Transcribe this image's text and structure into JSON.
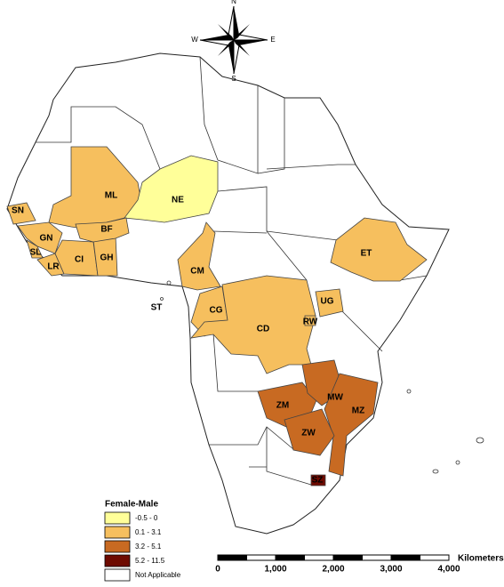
{
  "compass": {
    "north": "N",
    "south": "S",
    "east": "E",
    "west": "W"
  },
  "regions": [
    {
      "code": "ML",
      "range": "0.1 - 3.1"
    },
    {
      "code": "NE",
      "range": "-0.5 - 0"
    },
    {
      "code": "SN",
      "range": "0.1 - 3.1"
    },
    {
      "code": "GN",
      "range": "0.1 - 3.1"
    },
    {
      "code": "SL",
      "range": "0.1 - 3.1"
    },
    {
      "code": "LR",
      "range": "0.1 - 3.1"
    },
    {
      "code": "CI",
      "range": "0.1 - 3.1"
    },
    {
      "code": "GH",
      "range": "0.1 - 3.1"
    },
    {
      "code": "BF",
      "range": "0.1 - 3.1"
    },
    {
      "code": "CM",
      "range": "0.1 - 3.1"
    },
    {
      "code": "CG",
      "range": "0.1 - 3.1"
    },
    {
      "code": "CD",
      "range": "0.1 - 3.1"
    },
    {
      "code": "UG",
      "range": "0.1 - 3.1"
    },
    {
      "code": "RW",
      "range": "0.1 - 3.1"
    },
    {
      "code": "ET",
      "range": "0.1 - 3.1"
    },
    {
      "code": "ZM",
      "range": "3.2 - 5.1"
    },
    {
      "code": "MW",
      "range": "3.2 - 5.1"
    },
    {
      "code": "MZ",
      "range": "3.2 - 5.1"
    },
    {
      "code": "ZW",
      "range": "3.2 - 5.1"
    },
    {
      "code": "SZ",
      "range": "5.2 - 11.5"
    },
    {
      "code": "ST",
      "range": "Not Applicable"
    }
  ],
  "legend": {
    "title": "Female-Male",
    "entries": [
      {
        "label": "-0.5 - 0",
        "color": "#ffff99"
      },
      {
        "label": "0.1 - 3.1",
        "color": "#f6bf5e"
      },
      {
        "label": "3.2 - 5.1",
        "color": "#c86a22"
      },
      {
        "label": "5.2 - 11.5",
        "color": "#6e0a00"
      },
      {
        "label": "Not Applicable",
        "color": "#ffffff"
      }
    ]
  },
  "scale_bar": {
    "ticks": [
      "0",
      "1,000",
      "2,000",
      "3,000",
      "4,000"
    ],
    "unit": "Kilometers"
  }
}
